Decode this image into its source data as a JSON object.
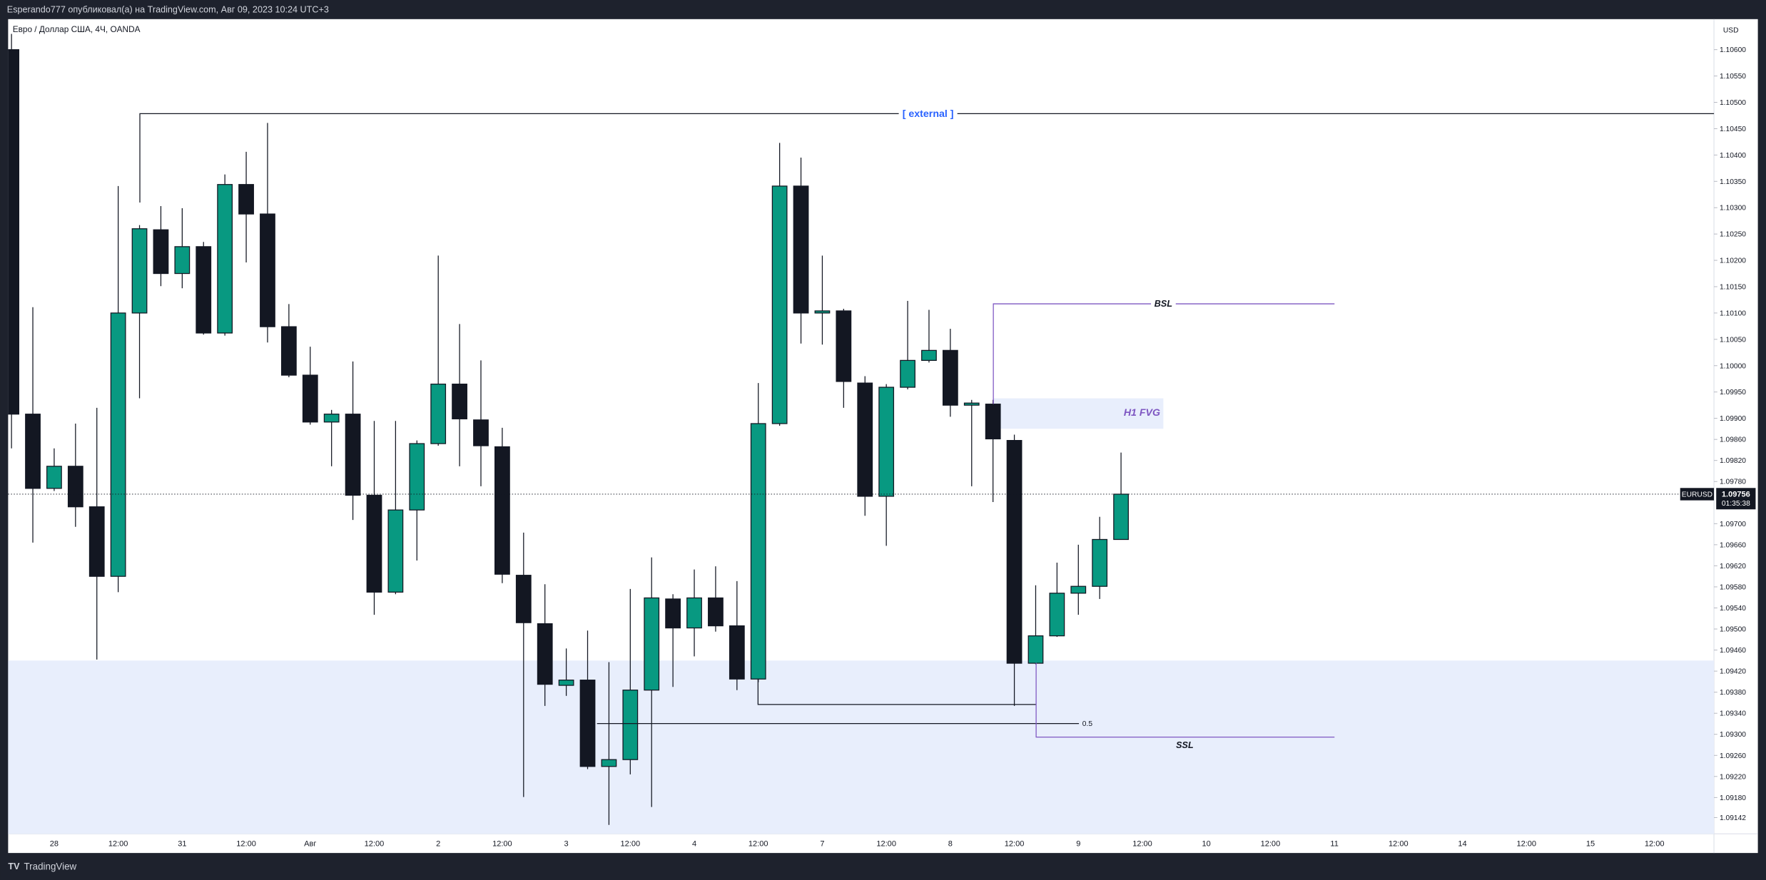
{
  "header": {
    "published": "Esperando777 опубликовал(а) на TradingView.com, Авг 09, 2023 10:24 UTC+3",
    "footer_brand": "TradingView"
  },
  "chart_data": {
    "type": "candlestick",
    "title": "Евро / Доллар США, 4Ч, OANDA",
    "currency": "USD",
    "up_color": "#089981",
    "down_color": "#131722",
    "grid": false,
    "categories": [
      null,
      null,
      "28",
      null,
      null,
      "12:00",
      null,
      null,
      "31",
      null,
      null,
      "12:00",
      null,
      null,
      "Авг",
      null,
      null,
      "12:00",
      null,
      null,
      "2",
      null,
      null,
      "12:00",
      null,
      null,
      "3",
      null,
      null,
      "12:00",
      null,
      null,
      "4",
      null,
      null,
      "12:00",
      null,
      null,
      "7",
      null,
      null,
      "12:00",
      null,
      null,
      "8",
      null,
      null,
      "12:00",
      null,
      null,
      "9",
      null,
      null,
      "12:00",
      null,
      null,
      "10",
      null,
      null,
      "12:00",
      null,
      null,
      "11",
      null,
      null,
      "12:00",
      null,
      null,
      "14",
      null,
      null,
      "12:00",
      null,
      null,
      "15",
      null,
      null,
      "12:00",
      null,
      null
    ],
    "open": [
      1.106,
      1.09908,
      1.09767,
      1.09809,
      1.09732,
      1.096,
      1.101,
      1.10258,
      1.10175,
      1.10226,
      1.10062,
      1.10344,
      1.10288,
      1.10074,
      1.09982,
      1.09893,
      1.09908,
      1.09754,
      1.0957,
      1.09726,
      1.09852,
      1.09965,
      1.09897,
      1.09846,
      1.09602,
      1.0951,
      1.09393,
      1.09403,
      1.09239,
      1.09252,
      1.09384,
      1.09557,
      1.09502,
      1.09559,
      1.09506,
      1.09405,
      1.0989,
      1.10341,
      1.101,
      1.10104,
      1.09967,
      1.09752,
      1.09959,
      1.1001,
      1.10029,
      1.09925,
      1.09927,
      1.09858,
      1.09435,
      1.09487,
      1.09568,
      1.09581,
      1.0967,
      null,
      null,
      null,
      null,
      null,
      null,
      null,
      null,
      null,
      null,
      null,
      null,
      null,
      null,
      null,
      null,
      null,
      null,
      null,
      null,
      null,
      null,
      null,
      null,
      null,
      null,
      null
    ],
    "high": [
      1.1063,
      1.10111,
      1.09843,
      1.0989,
      1.0992,
      1.10341,
      1.10267,
      1.10303,
      1.10299,
      1.10235,
      1.10363,
      1.10406,
      1.10461,
      1.10117,
      1.10036,
      1.09916,
      1.10008,
      1.09895,
      1.09895,
      1.09858,
      1.10209,
      1.10079,
      1.1001,
      1.09882,
      1.09683,
      1.09585,
      1.09463,
      1.09497,
      1.09437,
      1.09576,
      1.09636,
      1.09566,
      1.09613,
      1.09619,
      1.09591,
      1.09967,
      1.10423,
      1.10395,
      1.10209,
      1.10108,
      1.0998,
      1.09965,
      1.10123,
      1.10106,
      1.1007,
      1.09935,
      1.09935,
      1.09869,
      1.09583,
      1.09626,
      1.0966,
      1.09713,
      1.09835,
      null,
      null,
      null,
      null,
      null,
      null,
      null,
      null,
      null,
      null,
      null,
      null,
      null,
      null,
      null,
      null,
      null,
      null,
      null,
      null,
      null,
      null,
      null,
      null,
      null,
      null,
      null
    ],
    "low": [
      1.09843,
      1.09664,
      1.09762,
      1.09694,
      1.09442,
      1.0957,
      1.09938,
      1.10151,
      1.10147,
      1.10059,
      1.10057,
      1.10196,
      1.10044,
      1.09978,
      1.09888,
      1.09809,
      1.09707,
      1.09527,
      1.09566,
      1.0963,
      1.09848,
      1.09809,
      1.09771,
      1.09587,
      1.09181,
      1.09354,
      1.09373,
      1.09234,
      1.09128,
      1.09224,
      1.09162,
      1.0939,
      1.09448,
      1.09495,
      1.09384,
      1.09399,
      1.09886,
      1.10042,
      1.1004,
      1.0992,
      1.09715,
      1.09658,
      1.09955,
      1.10006,
      1.09903,
      1.09771,
      1.09741,
      1.09354,
      1.09433,
      1.09485,
      1.09527,
      1.09557,
      1.0967,
      null,
      null,
      null,
      null,
      null,
      null,
      null,
      null,
      null,
      null,
      null,
      null,
      null,
      null,
      null,
      null,
      null,
      null,
      null,
      null,
      null,
      null,
      null,
      null,
      null,
      null,
      null
    ],
    "close": [
      1.09908,
      1.09767,
      1.09809,
      1.09732,
      1.096,
      1.101,
      1.1026,
      1.10175,
      1.10226,
      1.10062,
      1.10344,
      1.10288,
      1.10074,
      1.09982,
      1.09893,
      1.09908,
      1.09754,
      1.0957,
      1.09726,
      1.09852,
      1.09965,
      1.09899,
      1.09848,
      1.09604,
      1.09512,
      1.09395,
      1.09403,
      1.09239,
      1.09252,
      1.09384,
      1.09559,
      1.09502,
      1.09559,
      1.09506,
      1.09405,
      1.0989,
      1.10341,
      1.101,
      1.10104,
      1.0997,
      1.09752,
      1.09959,
      1.1001,
      1.10029,
      1.09925,
      1.09929,
      1.09861,
      1.09435,
      1.09487,
      1.09568,
      1.09581,
      1.0967,
      1.09756,
      null,
      null,
      null,
      null,
      null,
      null,
      null,
      null,
      null,
      null,
      null,
      null,
      null,
      null,
      null,
      null,
      null,
      null,
      null,
      null,
      null,
      null,
      null,
      null,
      null,
      null,
      null
    ],
    "ylim": [
      1.09111,
      1.10658
    ],
    "yticks": [
      {
        "value": 1.106,
        "label": "1.10600"
      },
      {
        "value": 1.1055,
        "label": "1.10550"
      },
      {
        "value": 1.105,
        "label": "1.10500"
      },
      {
        "value": 1.1045,
        "label": "1.10450"
      },
      {
        "value": 1.104,
        "label": "1.10400"
      },
      {
        "value": 1.1035,
        "label": "1.10350"
      },
      {
        "value": 1.103,
        "label": "1.10300"
      },
      {
        "value": 1.1025,
        "label": "1.10250"
      },
      {
        "value": 1.102,
        "label": "1.10200"
      },
      {
        "value": 1.1015,
        "label": "1.10150"
      },
      {
        "value": 1.101,
        "label": "1.10100"
      },
      {
        "value": 1.1005,
        "label": "1.10050"
      },
      {
        "value": 1.1,
        "label": "1.10000"
      },
      {
        "value": 1.0995,
        "label": "1.09950"
      },
      {
        "value": 1.099,
        "label": "1.09900"
      },
      {
        "value": 1.0986,
        "label": "1.09860"
      },
      {
        "value": 1.0982,
        "label": "1.09820"
      },
      {
        "value": 1.0978,
        "label": "1.09780"
      },
      {
        "value": 1.097,
        "label": "1.09700"
      },
      {
        "value": 1.0966,
        "label": "1.09660"
      },
      {
        "value": 1.0962,
        "label": "1.09620"
      },
      {
        "value": 1.0958,
        "label": "1.09580"
      },
      {
        "value": 1.0954,
        "label": "1.09540"
      },
      {
        "value": 1.095,
        "label": "1.09500"
      },
      {
        "value": 1.0946,
        "label": "1.09460"
      },
      {
        "value": 1.0942,
        "label": "1.09420"
      },
      {
        "value": 1.0938,
        "label": "1.09380"
      },
      {
        "value": 1.0934,
        "label": "1.09340"
      },
      {
        "value": 1.093,
        "label": "1.09300"
      },
      {
        "value": 1.0926,
        "label": "1.09260"
      },
      {
        "value": 1.0922,
        "label": "1.09220"
      },
      {
        "value": 1.0918,
        "label": "1.09180"
      },
      {
        "value": 1.09142,
        "label": "1.09142"
      }
    ],
    "last_price": {
      "symbol": "EURUSD",
      "value": 1.09756,
      "countdown": "01:35:38"
    },
    "annotations": {
      "external": "[ external ]",
      "bsl": "BSL",
      "fvg": "H1 FVG",
      "fib": "0.5",
      "ssl": "SSL"
    }
  }
}
